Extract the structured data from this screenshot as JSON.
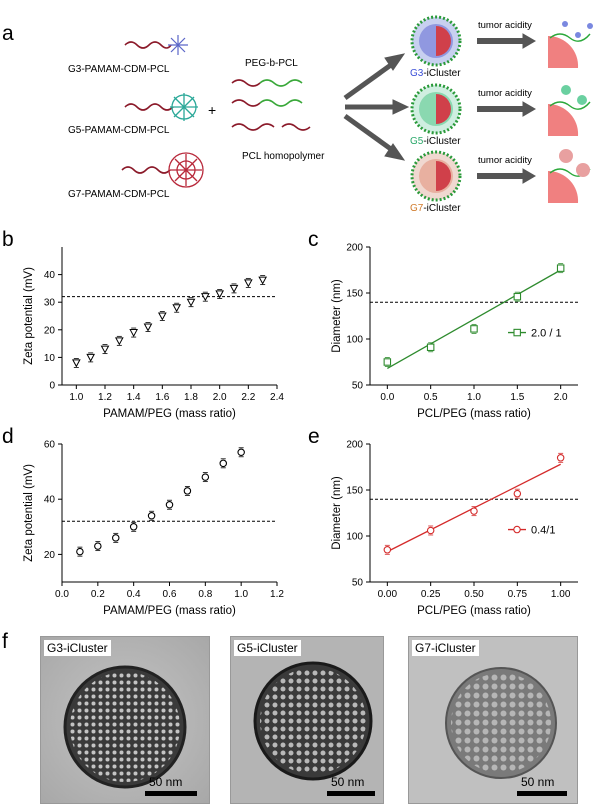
{
  "panel_a": {
    "label": "a",
    "polymers": [
      "G3-PAMAM-CDM-PCL",
      "G5-PAMAM-CDM-PCL",
      "G7-PAMAM-CDM-PCL"
    ],
    "plus": "+",
    "peg_pcl_label": "PEG-b-PCL",
    "pcl_homo_label": "PCL homopolymer",
    "clusters": [
      {
        "gen": "G3",
        "suffix": "-iCluster",
        "color": "#3b4fd8"
      },
      {
        "gen": "G5",
        "suffix": "-iCluster",
        "color": "#2aa86a"
      },
      {
        "gen": "G7",
        "suffix": "-iCluster",
        "color": "#d07a2a"
      }
    ],
    "trigger": "tumor acidity"
  },
  "chart_data": [
    {
      "panel": "b",
      "type": "scatter",
      "marker": "triangle-down",
      "x": [
        1.0,
        1.1,
        1.2,
        1.3,
        1.4,
        1.5,
        1.6,
        1.7,
        1.8,
        1.9,
        2.0,
        2.1,
        2.2,
        2.3
      ],
      "y": [
        8,
        10,
        13,
        16,
        19,
        21,
        25,
        28,
        30,
        32,
        33,
        35,
        37,
        38
      ],
      "xlabel": "PAMAM/PEG (mass ratio)",
      "ylabel": "Zeta potential (mV)",
      "xlim": [
        0.9,
        2.4
      ],
      "ylim": [
        0,
        50
      ],
      "xticks": [
        "1.0",
        "1.2",
        "1.4",
        "1.6",
        "1.8",
        "2.0",
        "2.2",
        "2.4"
      ],
      "yticks": [
        "0",
        "10",
        "20",
        "30",
        "40"
      ],
      "reference_line_y": 32
    },
    {
      "panel": "c",
      "type": "scatter",
      "marker": "square",
      "color": "#2e8b2e",
      "x": [
        0.0,
        0.5,
        1.0,
        1.5,
        2.0
      ],
      "y": [
        75,
        91,
        111,
        146,
        177
      ],
      "fit_line": [
        [
          0.0,
          68
        ],
        [
          2.0,
          175
        ]
      ],
      "xlabel": "PCL/PEG (mass ratio)",
      "ylabel": "Diameter (nm)",
      "xlim": [
        -0.2,
        2.2
      ],
      "ylim": [
        50,
        200
      ],
      "xticks": [
        "0.0",
        "0.5",
        "1.0",
        "1.5",
        "2.0"
      ],
      "yticks": [
        "50",
        "100",
        "150",
        "200"
      ],
      "reference_line_y": 140,
      "legend": "2.0 / 1"
    },
    {
      "panel": "d",
      "type": "scatter",
      "marker": "circle",
      "x": [
        0.1,
        0.2,
        0.3,
        0.4,
        0.5,
        0.6,
        0.7,
        0.8,
        0.9,
        1.0
      ],
      "y": [
        21,
        23,
        26,
        30,
        34,
        38,
        43,
        48,
        53,
        57
      ],
      "xlabel": "PAMAM/PEG (mass ratio)",
      "ylabel": "Zeta potential (mV)",
      "xlim": [
        0.0,
        1.2
      ],
      "ylim": [
        10,
        60
      ],
      "xticks": [
        "0.0",
        "0.2",
        "0.4",
        "0.6",
        "0.8",
        "1.0",
        "1.2"
      ],
      "yticks": [
        "20",
        "40",
        "60"
      ],
      "reference_line_y": 32
    },
    {
      "panel": "e",
      "type": "scatter",
      "marker": "circle",
      "color": "#d42a2a",
      "x": [
        0.0,
        0.25,
        0.5,
        0.75,
        1.0
      ],
      "y": [
        85,
        106,
        127,
        146,
        185
      ],
      "fit_line": [
        [
          0.0,
          83
        ],
        [
          1.0,
          178
        ]
      ],
      "xlabel": "PCL/PEG (mass ratio)",
      "ylabel": "Diameter (nm)",
      "xlim": [
        -0.1,
        1.1
      ],
      "ylim": [
        50,
        200
      ],
      "xticks": [
        "0.00",
        "0.25",
        "0.50",
        "0.75",
        "1.00"
      ],
      "yticks": [
        "50",
        "100",
        "150",
        "200"
      ],
      "reference_line_y": 140,
      "legend": "0.4/1"
    }
  ],
  "panel_f": {
    "label": "f",
    "images": [
      {
        "title": "G3-iCluster",
        "scale": "50 nm"
      },
      {
        "title": "G5-iCluster",
        "scale": "50 nm"
      },
      {
        "title": "G7-iCluster",
        "scale": "50 nm"
      }
    ]
  },
  "panel_labels": {
    "b": "b",
    "c": "c",
    "d": "d",
    "e": "e"
  }
}
